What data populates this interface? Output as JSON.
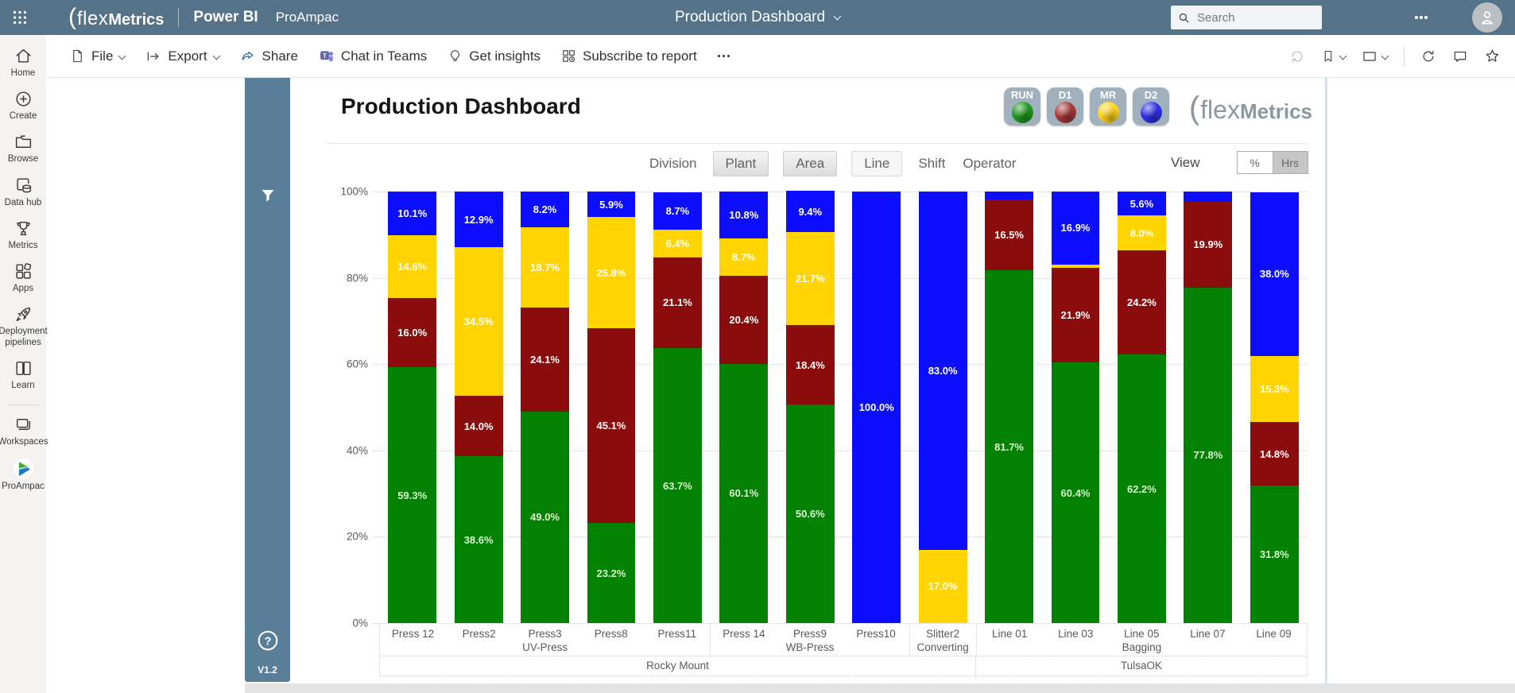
{
  "topbar": {
    "brand": {
      "paren": "(",
      "flex": "flex",
      "metrics": "Metrics"
    },
    "app": "Power BI",
    "workspace": "ProAmpac",
    "page_title": "Production Dashboard",
    "search_placeholder": "Search"
  },
  "toolbar": {
    "file": "File",
    "export": "Export",
    "share": "Share",
    "teams": "Chat in Teams",
    "insights": "Get insights",
    "subscribe": "Subscribe to report"
  },
  "sidebar": {
    "items": [
      {
        "label": "Home"
      },
      {
        "label": "Create"
      },
      {
        "label": "Browse"
      },
      {
        "label": "Data hub"
      },
      {
        "label": "Metrics"
      },
      {
        "label": "Apps"
      },
      {
        "label": "Deployment pipelines"
      },
      {
        "label": "Learn"
      },
      {
        "label": "Workspaces"
      },
      {
        "label": "ProAmpac"
      }
    ]
  },
  "report": {
    "title": "Production Dashboard",
    "version": "V1.2",
    "logo": {
      "paren": "(",
      "flex": "flex",
      "metrics": "Metrics"
    },
    "legend": [
      {
        "label": "RUN",
        "color": "#1f9a1f"
      },
      {
        "label": "D1",
        "color": "#a63a3a"
      },
      {
        "label": "MR",
        "color": "#ffd41c"
      },
      {
        "label": "D2",
        "color": "#3030e8"
      }
    ],
    "filters": {
      "division": "Division",
      "plant": "Plant",
      "area": "Area",
      "line": "Line",
      "shift": "Shift",
      "operator": "Operator",
      "view_label": "View",
      "pct": "%",
      "hrs": "Hrs"
    }
  },
  "chart_data": {
    "type": "bar",
    "stacked": true,
    "ylim": [
      0,
      100
    ],
    "grid": "dotted-horizontal",
    "yticks": [
      {
        "value": 100,
        "label": "100%"
      },
      {
        "value": 80,
        "label": "80%"
      },
      {
        "value": 60,
        "label": "60%"
      },
      {
        "value": 40,
        "label": "40%"
      },
      {
        "value": 20,
        "label": "20%"
      },
      {
        "value": 0,
        "label": "0%"
      }
    ],
    "series": [
      {
        "id": "run",
        "name": "RUN",
        "color": "#028102"
      },
      {
        "id": "d1",
        "name": "D1",
        "color": "#8b0c0c"
      },
      {
        "id": "mr",
        "name": "MR",
        "color": "#ffd400"
      },
      {
        "id": "d2",
        "name": "D2",
        "color": "#0d0dff"
      }
    ],
    "label_colors": {
      "on_run": "#d9f4cf",
      "default": "#ffffff"
    },
    "bars": [
      {
        "name": "Press 12",
        "segments": [
          {
            "series": "run",
            "value": 59.3,
            "label": "59.3%"
          },
          {
            "series": "d1",
            "value": 16.0,
            "label": "16.0%"
          },
          {
            "series": "mr",
            "value": 14.6,
            "label": "14.6%"
          },
          {
            "series": "d2",
            "value": 10.1,
            "label": "10.1%"
          }
        ]
      },
      {
        "name": "Press2",
        "segments": [
          {
            "series": "run",
            "value": 38.6,
            "label": "38.6%"
          },
          {
            "series": "d1",
            "value": 14.0,
            "label": "14.0%"
          },
          {
            "series": "mr",
            "value": 34.5,
            "label": "34.5%"
          },
          {
            "series": "d2",
            "value": 12.9,
            "label": "12.9%"
          }
        ]
      },
      {
        "name": "Press3",
        "segments": [
          {
            "series": "run",
            "value": 49.0,
            "label": "49.0%"
          },
          {
            "series": "d1",
            "value": 24.1,
            "label": "24.1%"
          },
          {
            "series": "mr",
            "value": 18.7,
            "label": "18.7%"
          },
          {
            "series": "d2",
            "value": 8.2,
            "label": "8.2%"
          }
        ]
      },
      {
        "name": "Press8",
        "segments": [
          {
            "series": "run",
            "value": 23.2,
            "label": "23.2%"
          },
          {
            "series": "d1",
            "value": 45.1,
            "label": "45.1%"
          },
          {
            "series": "mr",
            "value": 25.8,
            "label": "25.8%"
          },
          {
            "series": "d2",
            "value": 5.9,
            "label": "5.9%"
          }
        ]
      },
      {
        "name": "Press11",
        "segments": [
          {
            "series": "run",
            "value": 63.7,
            "label": "63.7%"
          },
          {
            "series": "d1",
            "value": 21.1,
            "label": "21.1%"
          },
          {
            "series": "mr",
            "value": 6.4,
            "label": "6.4%"
          },
          {
            "series": "d2",
            "value": 8.7,
            "label": "8.7%"
          }
        ]
      },
      {
        "name": "Press 14",
        "segments": [
          {
            "series": "run",
            "value": 60.1,
            "label": "60.1%"
          },
          {
            "series": "d1",
            "value": 20.4,
            "label": "20.4%"
          },
          {
            "series": "mr",
            "value": 8.7,
            "label": "8.7%"
          },
          {
            "series": "d2",
            "value": 10.8,
            "label": "10.8%"
          }
        ]
      },
      {
        "name": "Press9",
        "segments": [
          {
            "series": "run",
            "value": 50.6,
            "label": "50.6%"
          },
          {
            "series": "d1",
            "value": 18.4,
            "label": "18.4%"
          },
          {
            "series": "mr",
            "value": 21.7,
            "label": "21.7%"
          },
          {
            "series": "d2",
            "value": 9.4,
            "label": "9.4%"
          }
        ]
      },
      {
        "name": "Press10",
        "segments": [
          {
            "series": "d2",
            "value": 100.0,
            "label": "100.0%"
          }
        ]
      },
      {
        "name": "Slitter2",
        "segments": [
          {
            "series": "mr",
            "value": 17.0,
            "label": "17.0%"
          },
          {
            "series": "d2",
            "value": 83.0,
            "label": "83.0%"
          }
        ]
      },
      {
        "name": "Line 01",
        "segments": [
          {
            "series": "run",
            "value": 81.7,
            "label": "81.7%"
          },
          {
            "series": "d1",
            "value": 16.5,
            "label": "16.5%"
          },
          {
            "series": "d2",
            "value": 1.8,
            "label": ""
          }
        ]
      },
      {
        "name": "Line 03",
        "segments": [
          {
            "series": "run",
            "value": 60.4,
            "label": "60.4%"
          },
          {
            "series": "d1",
            "value": 21.9,
            "label": "21.9%"
          },
          {
            "series": "mr",
            "value": 0.8,
            "label": ""
          },
          {
            "series": "d2",
            "value": 16.9,
            "label": "16.9%"
          }
        ]
      },
      {
        "name": "Line 05",
        "segments": [
          {
            "series": "run",
            "value": 62.2,
            "label": "62.2%"
          },
          {
            "series": "d1",
            "value": 24.2,
            "label": "24.2%"
          },
          {
            "series": "mr",
            "value": 8.0,
            "label": "8.0%"
          },
          {
            "series": "d2",
            "value": 5.6,
            "label": "5.6%"
          }
        ]
      },
      {
        "name": "Line 07",
        "segments": [
          {
            "series": "run",
            "value": 77.8,
            "label": "77.8%"
          },
          {
            "series": "d1",
            "value": 19.9,
            "label": "19.9%"
          },
          {
            "series": "d2",
            "value": 2.3,
            "label": ""
          }
        ]
      },
      {
        "name": "Line 09",
        "segments": [
          {
            "series": "run",
            "value": 31.8,
            "label": "31.8%"
          },
          {
            "series": "d1",
            "value": 14.8,
            "label": "14.8%"
          },
          {
            "series": "mr",
            "value": 15.3,
            "label": "15.3%"
          },
          {
            "series": "d2",
            "value": 38.0,
            "label": "38.0%"
          }
        ]
      }
    ],
    "areas": [
      {
        "label": "UV-Press",
        "span": 5
      },
      {
        "label": "WB-Press",
        "span": 3
      },
      {
        "label": "Converting",
        "span": 1
      },
      {
        "label": "Bagging",
        "span": 5
      }
    ],
    "plants": [
      {
        "label": "Rocky Mount",
        "span": 9
      },
      {
        "label": "TulsaOK",
        "span": 5
      }
    ]
  }
}
